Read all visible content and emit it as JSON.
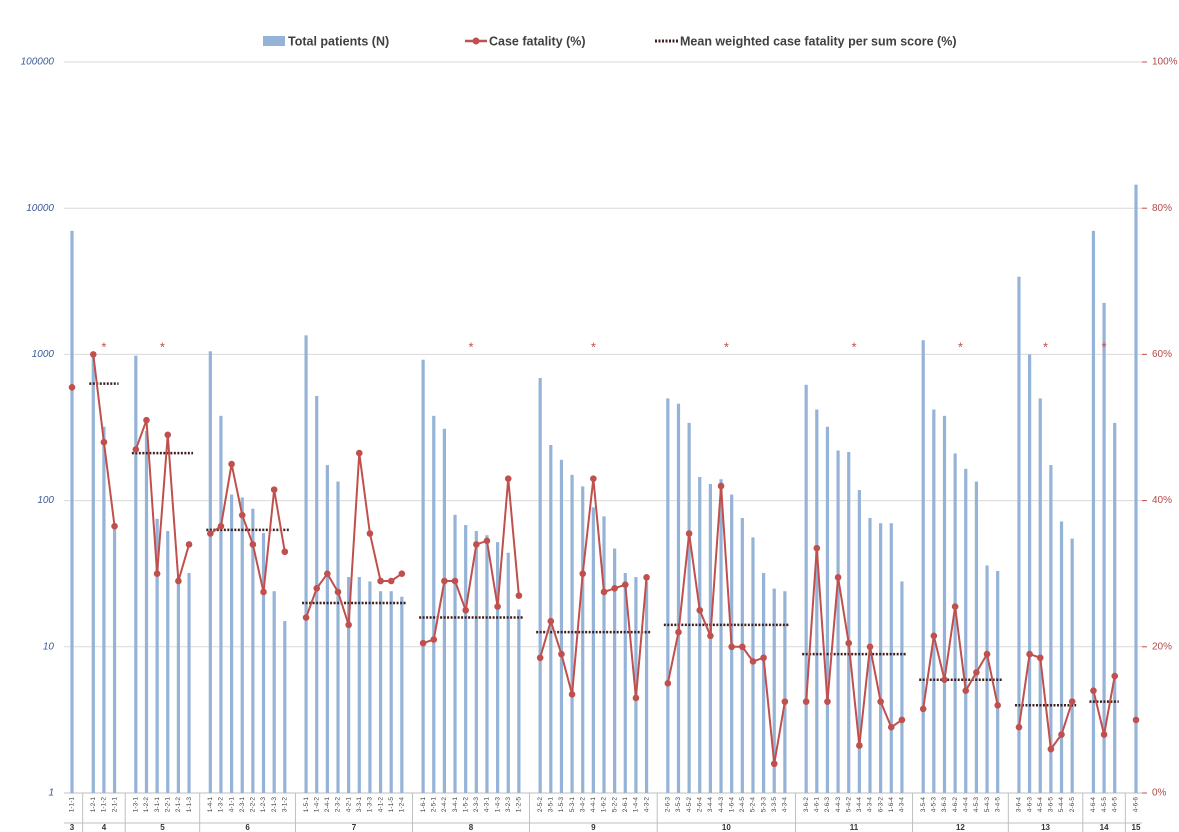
{
  "chart_data": {
    "type": "combo",
    "log_scale": true,
    "grid": true,
    "ylim": [
      1,
      100000
    ],
    "yticks": [
      1,
      10,
      100,
      1000,
      10000,
      100000
    ],
    "y2lim": [
      0,
      100
    ],
    "y2ticks": [
      {
        "value": 0,
        "label": "0%"
      },
      {
        "value": 20,
        "label": "20%"
      },
      {
        "value": 40,
        "label": "40%"
      },
      {
        "value": 60,
        "label": "60%"
      },
      {
        "value": 80,
        "label": "80%"
      },
      {
        "value": 100,
        "label": "100%"
      }
    ],
    "series": [
      {
        "name": "Total patients (N)",
        "color": "#95b3d7"
      },
      {
        "name": "Case fatality (%)",
        "color": "#c0504d",
        "axis": "y2"
      },
      {
        "name": "Mean weighted case fatality per sum score (%)",
        "color": "#3d1f1f",
        "axis": "y2"
      }
    ],
    "groups": [
      {
        "label": "3",
        "categories": [
          "1-1-1"
        ],
        "patients": [
          7000
        ],
        "case_fatality": [
          55.5
        ]
      },
      {
        "label": "4",
        "categories": [
          "1-2-1",
          "1-1-2",
          "2-1-1"
        ],
        "patients": [
          950,
          320,
          65
        ],
        "case_fatality": [
          60,
          48,
          36.5
        ],
        "mean": 56,
        "annotation": "*"
      },
      {
        "label": "5",
        "categories": [
          "1-3-1",
          "1-2-2",
          "3-1-1",
          "2-2-1",
          "2-1-2",
          "1-1-3"
        ],
        "patients": [
          980,
          300,
          75,
          62,
          30,
          32
        ],
        "case_fatality": [
          47,
          51,
          30,
          49,
          29,
          34
        ],
        "mean": 46.5,
        "annotation": "*"
      },
      {
        "label": "6",
        "categories": [
          "1-4-1",
          "1-3-2",
          "4-1-1",
          "2-3-1",
          "2-2-2",
          "1-2-3",
          "2-1-3",
          "3-1-2"
        ],
        "patients": [
          1050,
          380,
          110,
          105,
          88,
          60,
          24,
          15
        ],
        "case_fatality": [
          35.5,
          36.5,
          45,
          38,
          34,
          27.5,
          41.5,
          33
        ],
        "mean": 36
      },
      {
        "label": "7",
        "categories": [
          "1-5-1",
          "1-4-2",
          "2-4-1",
          "2-3-2",
          "4-2-1",
          "3-3-1",
          "1-3-3",
          "4-1-2",
          "1-1-5",
          "1-2-4"
        ],
        "patients": [
          1350,
          520,
          175,
          135,
          30,
          30,
          28,
          24,
          24,
          22
        ],
        "case_fatality": [
          24,
          28,
          30,
          27.5,
          23,
          46.5,
          35.5,
          29,
          29,
          30
        ],
        "mean": 26
      },
      {
        "label": "8",
        "categories": [
          "1-6-1",
          "2-5-1",
          "2-4-2",
          "3-4-1",
          "1-5-2",
          "2-3-3",
          "4-3-1",
          "1-4-3",
          "3-2-3",
          "1-2-5"
        ],
        "patients": [
          920,
          380,
          310,
          80,
          68,
          62,
          58,
          52,
          44,
          18
        ],
        "case_fatality": [
          20.5,
          21,
          29,
          29,
          25,
          34,
          34.5,
          25.5,
          43,
          27
        ],
        "mean": 24,
        "annotation": "*"
      },
      {
        "label": "9",
        "categories": [
          "2-5-2",
          "3-5-1",
          "1-5-3",
          "5-3-1",
          "3-4-2",
          "4-4-1",
          "1-6-2",
          "5-2-2",
          "2-6-1",
          "1-4-4",
          "4-3-2"
        ],
        "patients": [
          690,
          240,
          190,
          150,
          125,
          90,
          78,
          47,
          32,
          30,
          28
        ],
        "case_fatality": [
          18.5,
          23.5,
          19,
          13.5,
          30,
          43,
          27.5,
          28,
          28.5,
          13,
          29.5
        ],
        "mean": 22,
        "annotation": "*"
      },
      {
        "label": "10",
        "categories": [
          "2-6-3",
          "3-5-3",
          "4-5-2",
          "2-6-4",
          "3-4-4",
          "4-4-3",
          "1-6-4",
          "2-4-5",
          "5-2-4",
          "5-3-3",
          "3-3-5",
          "4-3-4"
        ],
        "patients": [
          500,
          460,
          340,
          145,
          130,
          140,
          110,
          76,
          56,
          32,
          25,
          24
        ],
        "case_fatality": [
          15,
          22,
          35.5,
          25,
          21.5,
          42,
          20,
          20,
          18,
          18.5,
          4,
          12.5
        ],
        "mean": 23,
        "annotation": "*"
      },
      {
        "label": "11",
        "categories": [
          "3-6-2",
          "4-6-1",
          "2-6-3",
          "4-4-3",
          "5-4-2",
          "3-4-4",
          "4-3-4",
          "6-3-2",
          "1-6-4",
          "4-3-4"
        ],
        "patients": [
          620,
          420,
          320,
          220,
          215,
          118,
          76,
          70,
          70,
          28
        ],
        "case_fatality": [
          12.5,
          33.5,
          12.5,
          29.5,
          20.5,
          6.5,
          20,
          12.5,
          9,
          10
        ],
        "mean": 19,
        "annotation": "*"
      },
      {
        "label": "12",
        "categories": [
          "3-5-4",
          "4-5-3",
          "3-6-3",
          "4-6-2",
          "4-4-4",
          "4-5-3",
          "5-4-3",
          "3-4-5"
        ],
        "patients": [
          1250,
          420,
          380,
          210,
          165,
          135,
          36,
          33
        ],
        "case_fatality": [
          11.5,
          21.5,
          15.5,
          25.5,
          14,
          16.5,
          19,
          12
        ],
        "mean": 15.5,
        "annotation": "*"
      },
      {
        "label": "13",
        "categories": [
          "3-6-4",
          "4-6-3",
          "4-5-4",
          "3-6-5",
          "5-4-4",
          "2-6-5"
        ],
        "patients": [
          3400,
          1000,
          500,
          175,
          72,
          55
        ],
        "case_fatality": [
          9,
          19,
          18.5,
          6,
          8,
          12.5
        ],
        "mean": 12,
        "annotation": "*"
      },
      {
        "label": "14",
        "categories": [
          "4-6-4",
          "4-5-5",
          "4-6-5"
        ],
        "patients": [
          7000,
          2250,
          340
        ],
        "case_fatality": [
          14,
          8,
          16
        ],
        "mean": 12.5,
        "annotation": "*"
      },
      {
        "label": "15",
        "categories": [
          "4-6-6"
        ],
        "patients": [
          14500
        ],
        "case_fatality": [
          10
        ]
      }
    ]
  }
}
